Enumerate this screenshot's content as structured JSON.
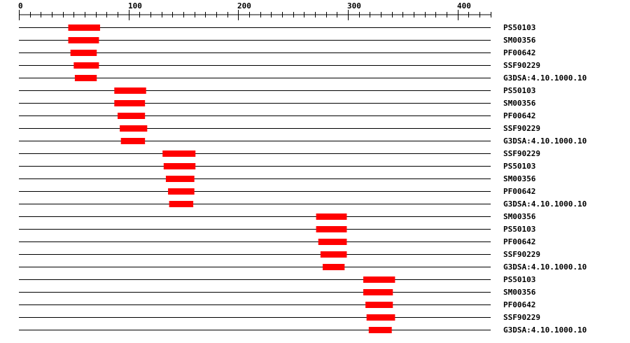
{
  "chart_data": {
    "type": "domain-track",
    "axis": {
      "min": 0,
      "max": 430,
      "major_ticks": [
        0,
        100,
        200,
        300,
        400
      ],
      "minor_step": 10
    },
    "colors": {
      "domain": "#ff0000",
      "line": "#000000"
    },
    "tracks": [
      {
        "label": "PS50103",
        "start": 45,
        "end": 74
      },
      {
        "label": "SM00356",
        "start": 45,
        "end": 73
      },
      {
        "label": "PF00642",
        "start": 47,
        "end": 71
      },
      {
        "label": "SSF90229",
        "start": 50,
        "end": 73
      },
      {
        "label": "G3DSA:4.10.1000.10",
        "start": 51,
        "end": 71
      },
      {
        "label": "PS50103",
        "start": 87,
        "end": 116
      },
      {
        "label": "SM00356",
        "start": 87,
        "end": 115
      },
      {
        "label": "PF00642",
        "start": 90,
        "end": 115
      },
      {
        "label": "SSF90229",
        "start": 92,
        "end": 117
      },
      {
        "label": "G3DSA:4.10.1000.10",
        "start": 93,
        "end": 115
      },
      {
        "label": "SSF90229",
        "start": 131,
        "end": 161
      },
      {
        "label": "PS50103",
        "start": 132,
        "end": 161
      },
      {
        "label": "SM00356",
        "start": 134,
        "end": 160
      },
      {
        "label": "PF00642",
        "start": 136,
        "end": 160
      },
      {
        "label": "G3DSA:4.10.1000.10",
        "start": 137,
        "end": 159
      },
      {
        "label": "SM00356",
        "start": 271,
        "end": 299
      },
      {
        "label": "PS50103",
        "start": 271,
        "end": 299
      },
      {
        "label": "PF00642",
        "start": 273,
        "end": 299
      },
      {
        "label": "SSF90229",
        "start": 275,
        "end": 299
      },
      {
        "label": "G3DSA:4.10.1000.10",
        "start": 277,
        "end": 297
      },
      {
        "label": "PS50103",
        "start": 314,
        "end": 343
      },
      {
        "label": "SM00356",
        "start": 314,
        "end": 341
      },
      {
        "label": "PF00642",
        "start": 316,
        "end": 341
      },
      {
        "label": "SSF90229",
        "start": 317,
        "end": 343
      },
      {
        "label": "G3DSA:4.10.1000.10",
        "start": 319,
        "end": 340
      }
    ]
  }
}
